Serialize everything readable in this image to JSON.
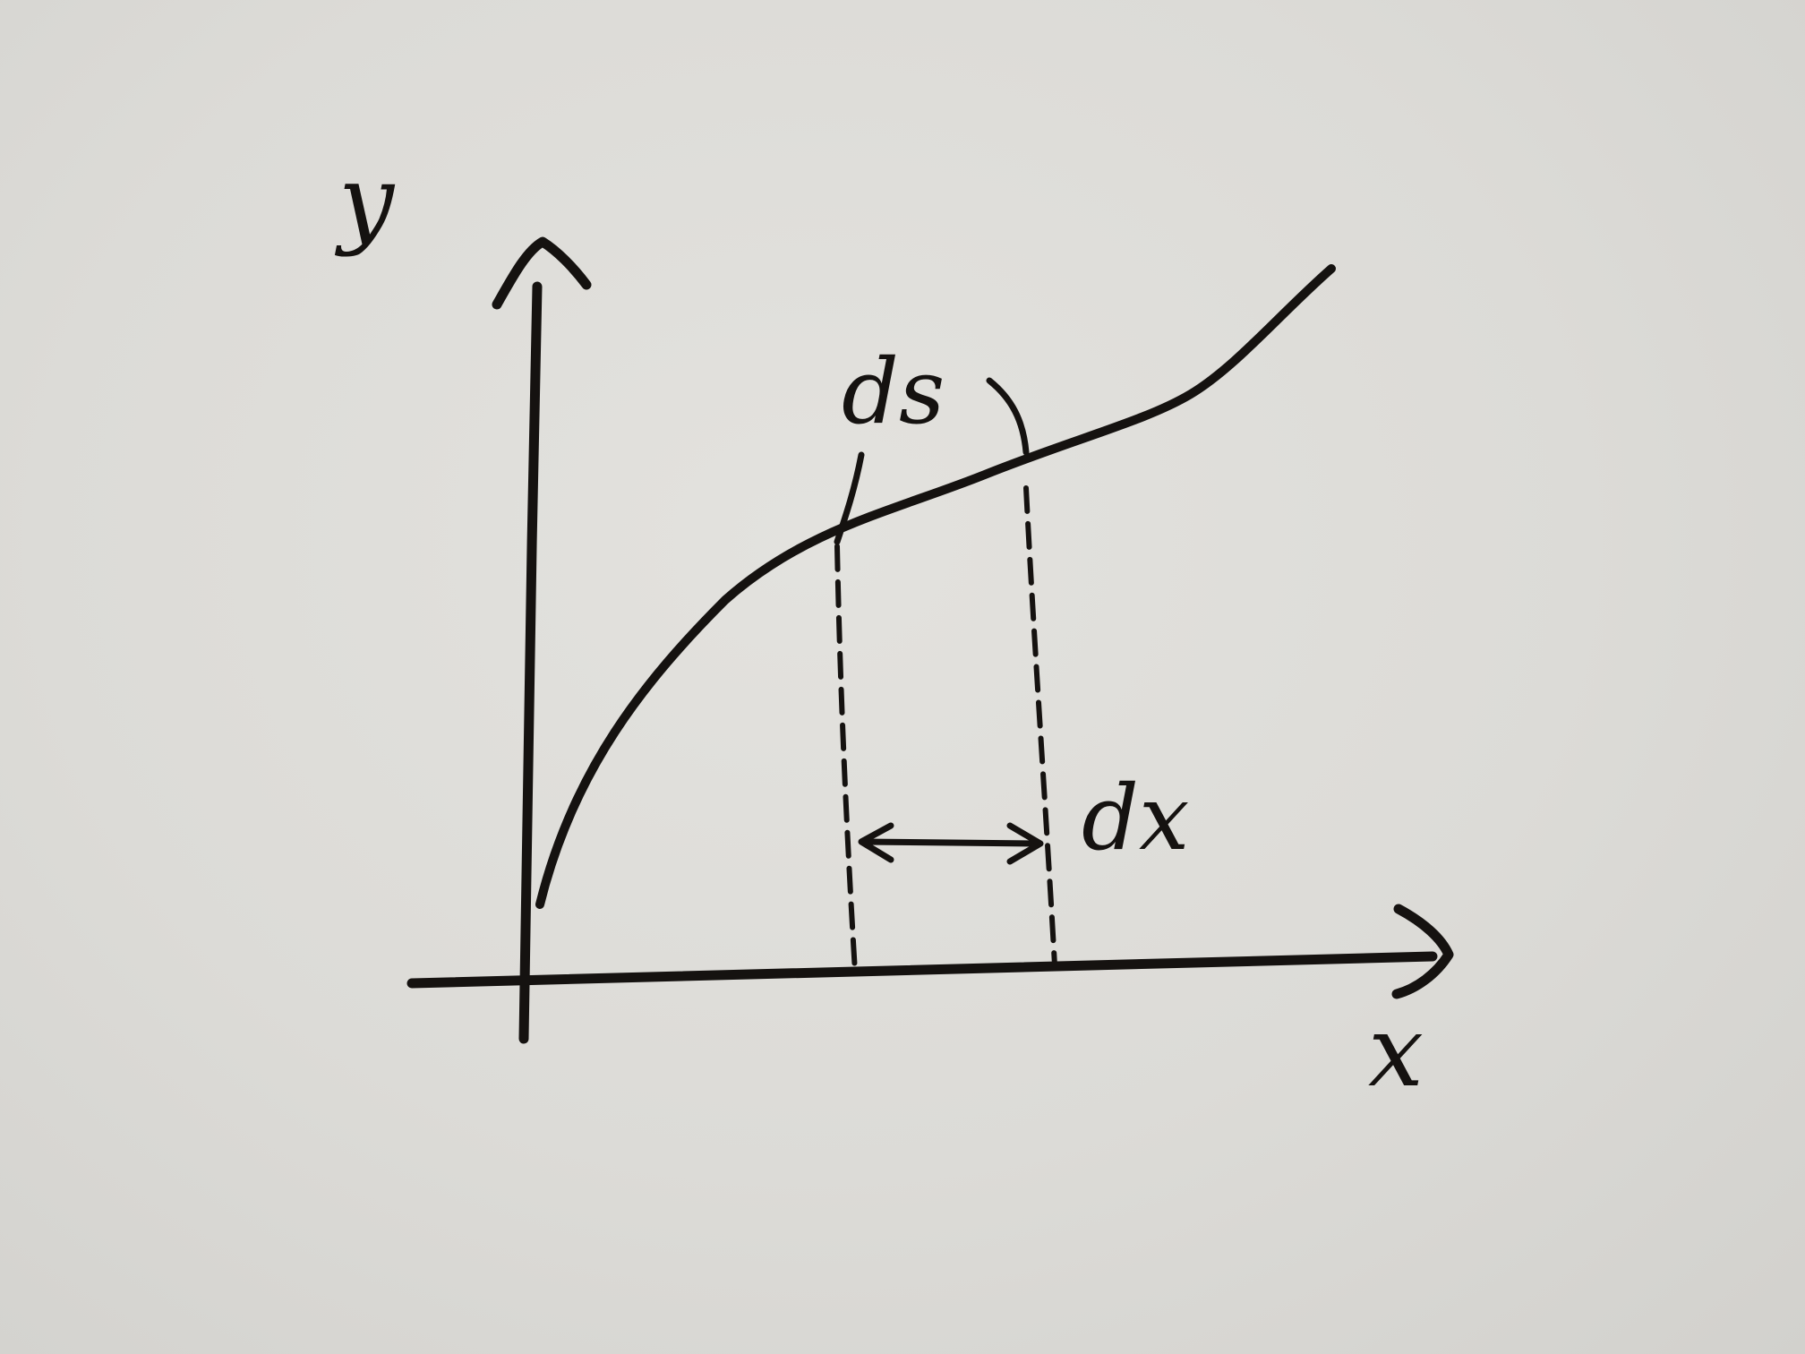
{
  "labels": {
    "y_axis": "y",
    "x_axis": "x",
    "arc_length": "ds",
    "interval": "dx"
  },
  "colors": {
    "paper": "#dcdbd7",
    "ink": "#151210"
  }
}
